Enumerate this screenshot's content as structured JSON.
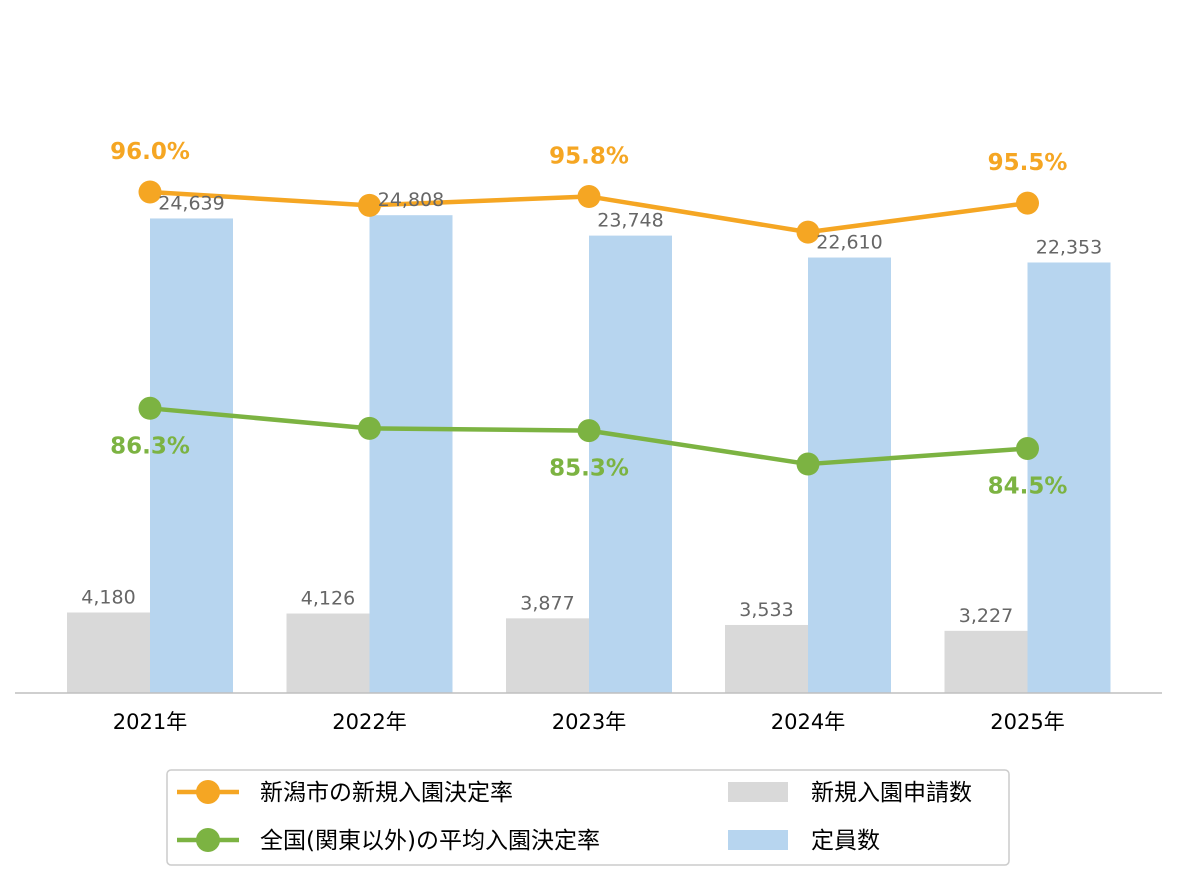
{
  "chart_data": {
    "type": "bar",
    "categories": [
      "2021年",
      "2022年",
      "2023年",
      "2024年",
      "2025年"
    ],
    "bar_series": [
      {
        "name": "新規入園申請数",
        "values": [
          4180,
          4126,
          3877,
          3533,
          3227
        ],
        "labels": [
          "4,180",
          "4,126",
          "3,877",
          "3,533",
          "3,227"
        ],
        "color": "#d9d9d9"
      },
      {
        "name": "定員数",
        "values": [
          24639,
          24808,
          23748,
          22610,
          22353
        ],
        "labels": [
          "24,639",
          "24,808",
          "23,748",
          "22,610",
          "22,353"
        ],
        "color": "#b7d5ef"
      }
    ],
    "line_series": [
      {
        "name": "新潟市の新規入園決定率",
        "values": [
          96.0,
          95.4,
          95.8,
          94.2,
          95.5
        ],
        "labels": [
          "96.0%",
          "",
          "95.8%",
          "",
          "95.5%"
        ],
        "color": "#f5a623"
      },
      {
        "name": "全国(関東以外)の平均入園決定率",
        "values": [
          86.3,
          85.4,
          85.3,
          83.8,
          84.5
        ],
        "labels": [
          "86.3%",
          "",
          "85.3%",
          "",
          "84.5%"
        ],
        "color": "#7cb342"
      }
    ],
    "ylim_bars": [
      0,
      28000
    ],
    "ylim_rate": [
      70,
      100
    ],
    "grid": false,
    "legend_position": "bottom"
  }
}
